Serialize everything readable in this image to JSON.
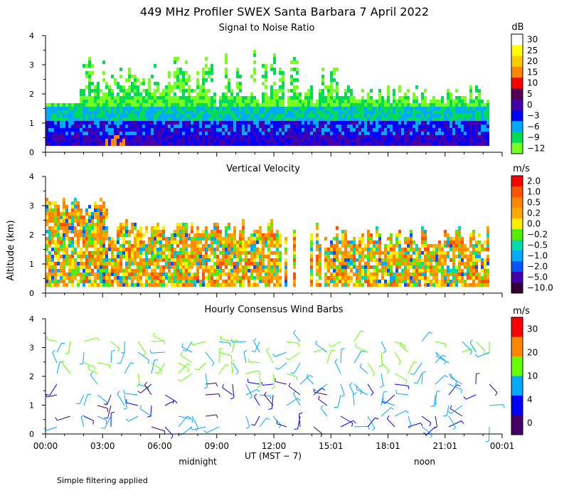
{
  "page": {
    "title": "449 MHz Profiler SWEX Santa Barbara  7 April 2022",
    "footnote": "Simple filtering applied"
  },
  "chart_data": [
    {
      "type": "heatmap",
      "title": "Signal to Noise Ratio",
      "unit": "dB",
      "ylabel": "",
      "ylim": [
        0,
        4
      ],
      "yticks": [
        "0",
        "1",
        "2",
        "3",
        "4"
      ],
      "colorbar": {
        "labels": [
          "30",
          "25",
          "20",
          "15",
          "10",
          "5",
          "0",
          "−3",
          "−6",
          "−9",
          "−12"
        ],
        "colors": [
          "#ffffff",
          "#ffff00",
          "#ffcc00",
          "#ff8800",
          "#ff0000",
          "#550055",
          "#4400aa",
          "#0000ff",
          "#00aaff",
          "#00dd55",
          "#77ff22"
        ]
      }
    },
    {
      "type": "heatmap",
      "title": "Vertical Velocity",
      "unit": "m/s",
      "ylabel": "Altitude (km)",
      "ylim": [
        0,
        4
      ],
      "yticks": [
        "0",
        "1",
        "2",
        "3",
        "4"
      ],
      "colorbar": {
        "labels": [
          "2.0",
          "1.0",
          "0.5",
          "0.2",
          "0.0",
          "−0.2",
          "−0.5",
          "−1.0",
          "−2.0",
          "−5.0",
          "−10.0"
        ],
        "colors": [
          "#ff0000",
          "#ff5500",
          "#ff8800",
          "#ffaa00",
          "#ffee00",
          "#55ee00",
          "#00ddaa",
          "#00aaff",
          "#0055ff",
          "#4400aa",
          "#330033"
        ]
      }
    },
    {
      "type": "scatter",
      "title": "Hourly Consensus Wind Barbs",
      "unit": "m/s",
      "ylabel": "",
      "ylim": [
        0,
        4
      ],
      "yticks": [
        "0",
        "1",
        "2",
        "3",
        "4"
      ],
      "colorbar": {
        "labels": [
          "30",
          "20",
          "10",
          "4",
          "0"
        ],
        "colors": [
          "#ff0000",
          "#ff8800",
          "#66ff00",
          "#00aaff",
          "#0000ff",
          "#440066"
        ]
      }
    }
  ],
  "xaxis": {
    "ticks": [
      "00:00",
      "03:00",
      "06:00",
      "09:00",
      "12:00",
      "15:01",
      "18:01",
      "21:01",
      "00:01"
    ],
    "label": "UT  (MST − 7)",
    "midnight_label": "midnight",
    "noon_label": "noon"
  }
}
